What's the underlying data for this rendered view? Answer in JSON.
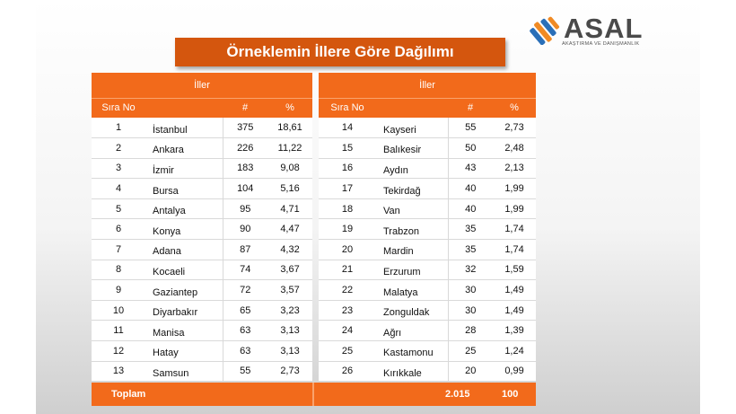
{
  "title": "Örneklemin İllere Göre Dağılımı",
  "logo": {
    "text": "ASAL",
    "subtitle": "AKAŞTIRMA VE DANIŞMANLIK"
  },
  "colors": {
    "accent": "#f26a1b",
    "title_bg": "#d4560e",
    "logo_blue": "#2a6fb8",
    "logo_orange": "#f08a24"
  },
  "table_left": {
    "group_header": "İller",
    "columns": [
      "Sıra No",
      "#",
      "%"
    ],
    "rows": [
      {
        "no": "1",
        "city": "İstanbul",
        "n": "375",
        "pct": "18,61"
      },
      {
        "no": "2",
        "city": "Ankara",
        "n": "226",
        "pct": "11,22"
      },
      {
        "no": "3",
        "city": "İzmir",
        "n": "183",
        "pct": "9,08"
      },
      {
        "no": "4",
        "city": "Bursa",
        "n": "104",
        "pct": "5,16"
      },
      {
        "no": "5",
        "city": "Antalya",
        "n": "95",
        "pct": "4,71"
      },
      {
        "no": "6",
        "city": "Konya",
        "n": "90",
        "pct": "4,47"
      },
      {
        "no": "7",
        "city": "Adana",
        "n": "87",
        "pct": "4,32"
      },
      {
        "no": "8",
        "city": "Kocaeli",
        "n": "74",
        "pct": "3,67"
      },
      {
        "no": "9",
        "city": "Gaziantep",
        "n": "72",
        "pct": "3,57"
      },
      {
        "no": "10",
        "city": "Diyarbakır",
        "n": "65",
        "pct": "3,23"
      },
      {
        "no": "11",
        "city": "Manisa",
        "n": "63",
        "pct": "3,13"
      },
      {
        "no": "12",
        "city": "Hatay",
        "n": "63",
        "pct": "3,13"
      },
      {
        "no": "13",
        "city": "Samsun",
        "n": "55",
        "pct": "2,73"
      }
    ]
  },
  "table_right": {
    "group_header": "İller",
    "columns": [
      "Sıra No",
      "#",
      "%"
    ],
    "rows": [
      {
        "no": "14",
        "city": "Kayseri",
        "n": "55",
        "pct": "2,73"
      },
      {
        "no": "15",
        "city": "Balıkesir",
        "n": "50",
        "pct": "2,48"
      },
      {
        "no": "16",
        "city": "Aydın",
        "n": "43",
        "pct": "2,13"
      },
      {
        "no": "17",
        "city": "Tekirdağ",
        "n": "40",
        "pct": "1,99"
      },
      {
        "no": "18",
        "city": "Van",
        "n": "40",
        "pct": "1,99"
      },
      {
        "no": "19",
        "city": "Trabzon",
        "n": "35",
        "pct": "1,74"
      },
      {
        "no": "20",
        "city": "Mardin",
        "n": "35",
        "pct": "1,74"
      },
      {
        "no": "21",
        "city": "Erzurum",
        "n": "32",
        "pct": "1,59"
      },
      {
        "no": "22",
        "city": "Malatya",
        "n": "30",
        "pct": "1,49"
      },
      {
        "no": "23",
        "city": "Zonguldak",
        "n": "30",
        "pct": "1,49"
      },
      {
        "no": "24",
        "city": "Ağrı",
        "n": "28",
        "pct": "1,39"
      },
      {
        "no": "25",
        "city": "Kastamonu",
        "n": "25",
        "pct": "1,24"
      },
      {
        "no": "26",
        "city": "Kırıkkale",
        "n": "20",
        "pct": "0,99"
      }
    ]
  },
  "total": {
    "label": "Toplam",
    "n": "2.015",
    "pct": "100"
  }
}
